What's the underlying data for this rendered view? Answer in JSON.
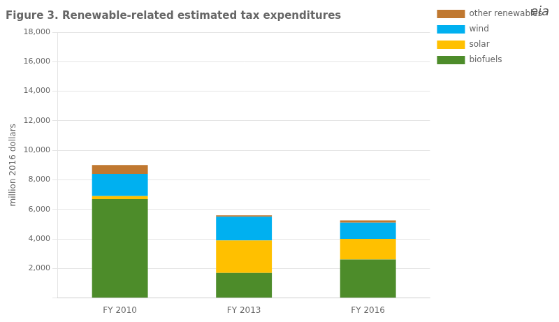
{
  "chart_data": {
    "type": "bar",
    "title": "Figure 3. Renewable-related estimated tax expenditures",
    "y_label": "million 2016 dollars",
    "categories": [
      "FY 2010",
      "FY 2013",
      "FY 2016"
    ],
    "series": [
      {
        "name": "biofuels",
        "color": "#4d8c2a",
        "values": [
          6700,
          1700,
          2600
        ]
      },
      {
        "name": "solar",
        "color": "#ffc000",
        "values": [
          200,
          2200,
          1400
        ]
      },
      {
        "name": "wind",
        "color": "#00b0f0",
        "values": [
          1500,
          1600,
          1100
        ]
      },
      {
        "name": "other renewables",
        "color": "#c07830",
        "values": [
          600,
          100,
          150
        ]
      }
    ],
    "stacked": true,
    "ylim": [
      0,
      18000
    ],
    "yticks": [
      {
        "value": 0,
        "label": ""
      },
      {
        "value": 2000,
        "label": "2,000"
      },
      {
        "value": 4000,
        "label": "4,000"
      },
      {
        "value": 6000,
        "label": "6,000"
      },
      {
        "value": 8000,
        "label": "8,000"
      },
      {
        "value": 10000,
        "label": "10,000"
      },
      {
        "value": 12000,
        "label": "12,000"
      },
      {
        "value": 14000,
        "label": "14,000"
      },
      {
        "value": 16000,
        "label": "16,000"
      },
      {
        "value": 18000,
        "label": "18,000"
      }
    ],
    "grid": true,
    "legend": "upper right",
    "annotations": [
      "eia"
    ]
  }
}
